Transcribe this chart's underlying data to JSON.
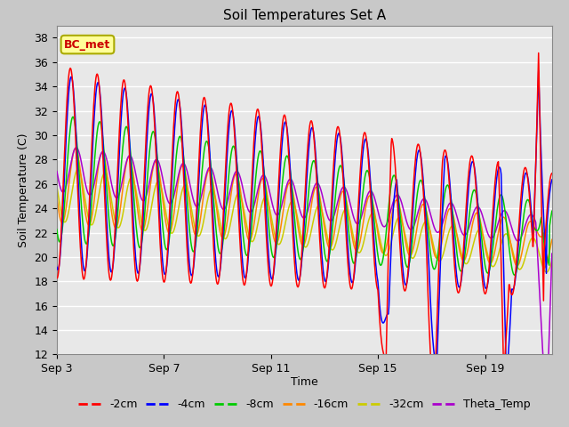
{
  "title": "Soil Temperatures Set A",
  "xlabel": "Time",
  "ylabel": "Soil Temperature (C)",
  "ylim": [
    12,
    39
  ],
  "yticks": [
    12,
    14,
    16,
    18,
    20,
    22,
    24,
    26,
    28,
    30,
    32,
    34,
    36,
    38
  ],
  "xtick_labels": [
    "Sep 3",
    "Sep 7",
    "Sep 11",
    "Sep 15",
    "Sep 19"
  ],
  "xtick_days": [
    0,
    4,
    8,
    12,
    16
  ],
  "annotation_text": "BC_met",
  "colors": {
    "-2cm": "#ff0000",
    "-4cm": "#0000ff",
    "-8cm": "#00cc00",
    "-16cm": "#ff8800",
    "-32cm": "#cccc00",
    "Theta_Temp": "#aa00cc"
  },
  "legend_entries": [
    "-2cm",
    "-4cm",
    "-8cm",
    "-16cm",
    "-32cm",
    "Theta_Temp"
  ],
  "plot_bg_color": "#e8e8e8",
  "fig_bg_color": "#c8c8c8",
  "title_fontsize": 11,
  "axis_label_fontsize": 9,
  "tick_fontsize": 9,
  "legend_fontsize": 9,
  "n_days": 18.5,
  "pts_per_day": 48
}
